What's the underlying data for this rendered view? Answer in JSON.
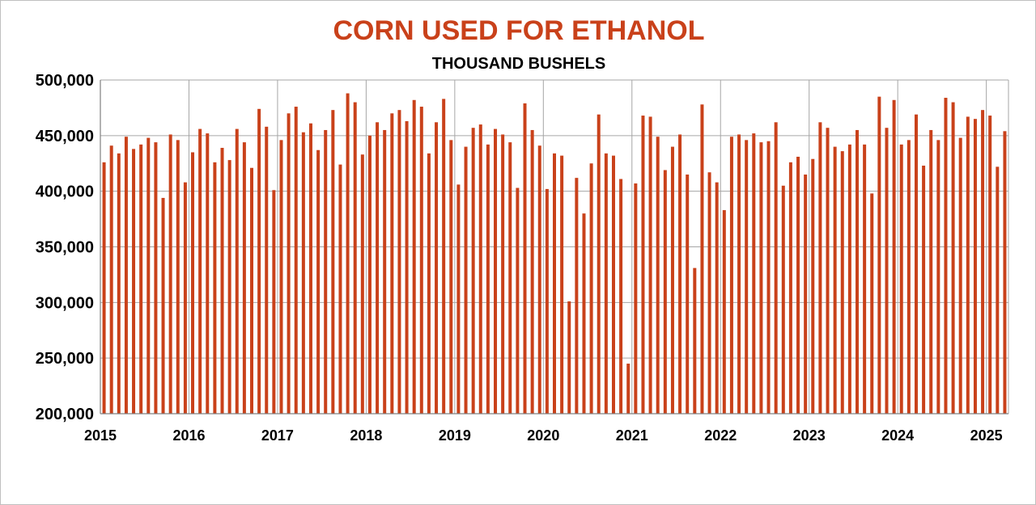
{
  "colors": {
    "bar": "#C9411A",
    "title": "#C9411A",
    "grid": "#a6a6a6",
    "axis": "#808080"
  },
  "chart_data": {
    "type": "bar",
    "title": "CORN USED FOR ETHANOL",
    "subtitle": "THOUSAND BUSHELS",
    "xlabel": "",
    "ylabel": "",
    "ylim": [
      200000,
      500000
    ],
    "yticks": [
      200000,
      250000,
      300000,
      350000,
      400000,
      450000,
      500000
    ],
    "ytick_labels": [
      "200,000",
      "250,000",
      "300,000",
      "350,000",
      "400,000",
      "450,000",
      "500,000"
    ],
    "xtick_labels": [
      "2015",
      "2016",
      "2017",
      "2018",
      "2019",
      "2020",
      "2021",
      "2022",
      "2023",
      "2024",
      "2025"
    ],
    "grid": true,
    "categories": [
      "2015-01",
      "2015-02",
      "2015-03",
      "2015-04",
      "2015-05",
      "2015-06",
      "2015-07",
      "2015-08",
      "2015-09",
      "2015-10",
      "2015-11",
      "2015-12",
      "2016-01",
      "2016-02",
      "2016-03",
      "2016-04",
      "2016-05",
      "2016-06",
      "2016-07",
      "2016-08",
      "2016-09",
      "2016-10",
      "2016-11",
      "2016-12",
      "2017-01",
      "2017-02",
      "2017-03",
      "2017-04",
      "2017-05",
      "2017-06",
      "2017-07",
      "2017-08",
      "2017-09",
      "2017-10",
      "2017-11",
      "2017-12",
      "2018-01",
      "2018-02",
      "2018-03",
      "2018-04",
      "2018-05",
      "2018-06",
      "2018-07",
      "2018-08",
      "2018-09",
      "2018-10",
      "2018-11",
      "2018-12",
      "2019-01",
      "2019-02",
      "2019-03",
      "2019-04",
      "2019-05",
      "2019-06",
      "2019-07",
      "2019-08",
      "2019-09",
      "2019-10",
      "2019-11",
      "2019-12",
      "2020-01",
      "2020-02",
      "2020-03",
      "2020-04",
      "2020-05",
      "2020-06",
      "2020-07",
      "2020-08",
      "2020-09",
      "2020-10",
      "2020-11",
      "2020-12",
      "2021-01",
      "2021-02",
      "2021-03",
      "2021-04",
      "2021-05",
      "2021-06",
      "2021-07",
      "2021-08",
      "2021-09",
      "2021-10",
      "2021-11",
      "2021-12",
      "2022-01",
      "2022-02",
      "2022-03",
      "2022-04",
      "2022-05",
      "2022-06",
      "2022-07",
      "2022-08",
      "2022-09",
      "2022-10",
      "2022-11",
      "2022-12",
      "2023-01",
      "2023-02",
      "2023-03",
      "2023-04",
      "2023-05",
      "2023-06",
      "2023-07",
      "2023-08",
      "2023-09",
      "2023-10",
      "2023-11",
      "2023-12",
      "2024-01",
      "2024-02",
      "2024-03",
      "2024-04",
      "2024-05",
      "2024-06",
      "2024-07",
      "2024-08",
      "2024-09",
      "2024-10",
      "2024-11",
      "2024-12",
      "2025-01",
      "2025-02",
      "2025-03"
    ],
    "values": [
      426000,
      441000,
      434000,
      449000,
      438000,
      442000,
      448000,
      444000,
      394000,
      451000,
      446000,
      408000,
      435000,
      456000,
      452000,
      426000,
      439000,
      428000,
      456000,
      444000,
      421000,
      474000,
      458000,
      401000,
      446000,
      470000,
      476000,
      453000,
      461000,
      437000,
      455000,
      473000,
      424000,
      488000,
      480000,
      433000,
      450000,
      462000,
      455000,
      470000,
      473000,
      463000,
      482000,
      476000,
      434000,
      462000,
      483000,
      446000,
      406000,
      440000,
      457000,
      460000,
      442000,
      456000,
      451000,
      444000,
      403000,
      479000,
      455000,
      441000,
      402000,
      434000,
      432000,
      301000,
      412000,
      380000,
      425000,
      469000,
      434000,
      432000,
      411000,
      245000,
      407000,
      468000,
      467000,
      449000,
      419000,
      440000,
      451000,
      415000,
      331000,
      478000,
      417000,
      408000,
      383000,
      449000,
      451000,
      446000,
      452000,
      444000,
      445000,
      462000,
      405000,
      426000,
      431000,
      415000,
      429000,
      462000,
      457000,
      440000,
      436000,
      442000,
      455000,
      442000,
      398000,
      485000,
      457000,
      482000,
      442000,
      446000,
      469000,
      423000,
      455000,
      446000,
      484000,
      480000,
      448000,
      467000,
      465000,
      473000,
      468000,
      422000,
      454000
    ]
  }
}
